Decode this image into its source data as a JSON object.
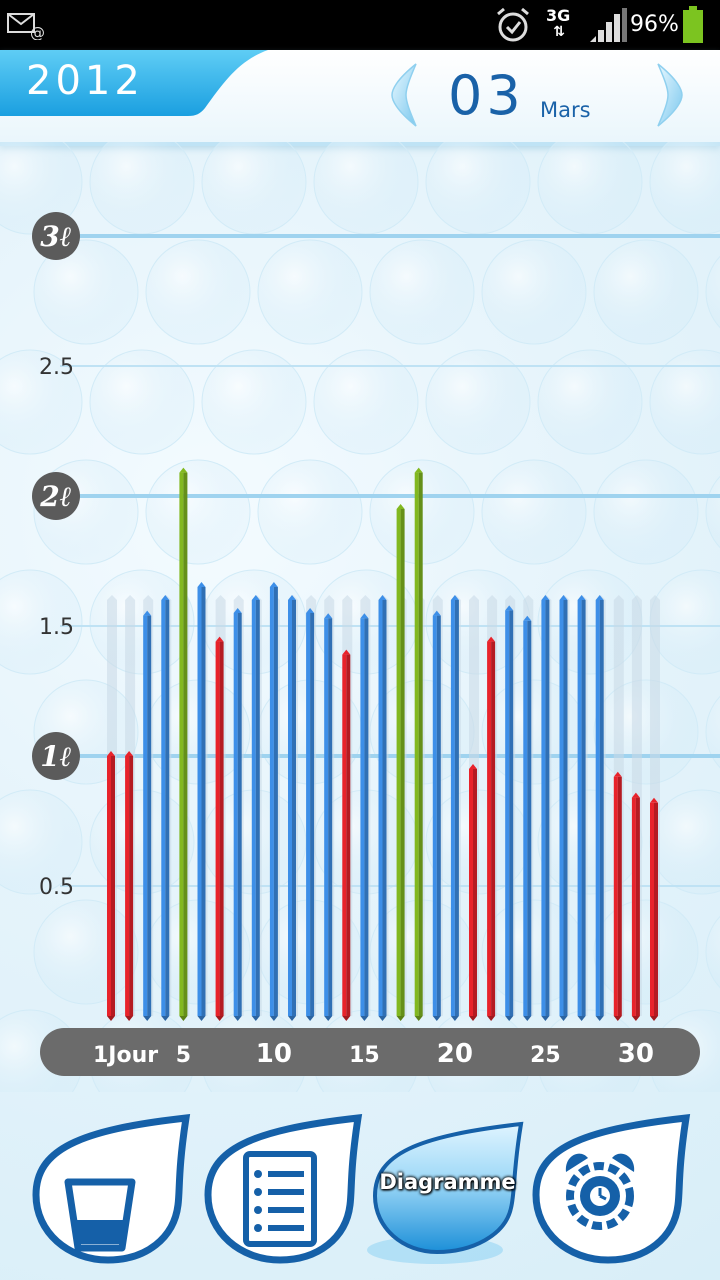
{
  "status_bar": {
    "network": "3G",
    "battery_percent": "96%"
  },
  "header": {
    "year": "2012",
    "month_number": "03",
    "month_name": "Mars"
  },
  "chart_data": {
    "type": "bar",
    "y_ticks": [
      {
        "value": 3,
        "label": "3ℓ",
        "style": "circle"
      },
      {
        "value": 2.5,
        "label": "2.5",
        "style": "plain"
      },
      {
        "value": 2,
        "label": "2ℓ",
        "style": "circle"
      },
      {
        "value": 1.5,
        "label": "1.5",
        "style": "plain"
      },
      {
        "value": 1,
        "label": "1ℓ",
        "style": "circle"
      },
      {
        "value": 0.5,
        "label": "0.5",
        "style": "plain"
      }
    ],
    "ylim": [
      0,
      3
    ],
    "x_labels": [
      {
        "day": 1,
        "label": "1Jour"
      },
      {
        "day": 5,
        "label": "5"
      },
      {
        "day": 10,
        "label": "10"
      },
      {
        "day": 15,
        "label": "15"
      },
      {
        "day": 20,
        "label": "20"
      },
      {
        "day": 25,
        "label": "25"
      },
      {
        "day": 30,
        "label": "30"
      }
    ],
    "goal": 1.6,
    "days": [
      1,
      2,
      3,
      4,
      5,
      6,
      7,
      8,
      9,
      10,
      11,
      12,
      13,
      14,
      15,
      16,
      17,
      18,
      19,
      20,
      21,
      22,
      23,
      24,
      25,
      26,
      27,
      28,
      29,
      30,
      31
    ],
    "values": [
      1.0,
      1.0,
      1.54,
      1.6,
      2.09,
      1.65,
      1.44,
      1.55,
      1.6,
      1.65,
      1.6,
      1.55,
      1.53,
      1.39,
      1.53,
      1.6,
      1.95,
      2.09,
      1.54,
      1.6,
      0.95,
      1.44,
      1.56,
      1.52,
      1.6,
      1.6,
      1.6,
      1.6,
      0.92,
      0.84,
      0.82
    ],
    "status": [
      "under",
      "under",
      "ok",
      "ok",
      "over",
      "ok",
      "under",
      "ok",
      "ok",
      "ok",
      "ok",
      "ok",
      "ok",
      "under",
      "ok",
      "ok",
      "over",
      "over",
      "ok",
      "ok",
      "under",
      "under",
      "ok",
      "ok",
      "ok",
      "ok",
      "ok",
      "ok",
      "under",
      "under",
      "under"
    ],
    "colors": {
      "under": "#e8232b",
      "ok": "#3d8fe8",
      "over": "#82b820",
      "goal": "#c8d8e6"
    }
  },
  "bottom_nav": [
    {
      "name": "drink-tab",
      "icon": "glass-icon",
      "label": ""
    },
    {
      "name": "log-tab",
      "icon": "list-icon",
      "label": ""
    },
    {
      "name": "chart-tab",
      "icon": "chart-icon",
      "label": "Diagramme"
    },
    {
      "name": "alarm-tab",
      "icon": "alarm-clock-icon",
      "label": ""
    }
  ]
}
